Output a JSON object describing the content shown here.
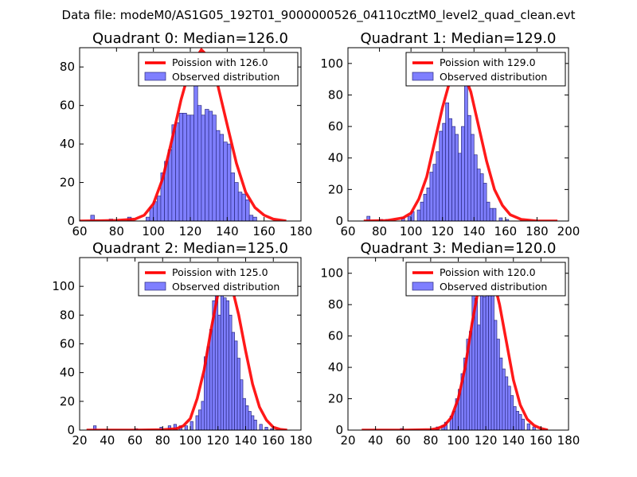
{
  "figure_title": "Data file: modeM0/AS1G05_192T01_9000000526_04110cztM0_level2_quad_clean.evt",
  "colors": {
    "bar_fill": "#7f7fff",
    "bar_edge": "#2a2a80",
    "poisson_line": "#ff0000"
  },
  "chart_data": [
    {
      "type": "bar",
      "title": "Quadrant 0: Median=126.0",
      "median": 126.0,
      "xlim": [
        60,
        180
      ],
      "ylim": [
        0,
        90
      ],
      "xticks": [
        60,
        80,
        100,
        120,
        140,
        160,
        180
      ],
      "yticks": [
        0,
        20,
        40,
        60,
        80
      ],
      "legend": {
        "position": "top-right",
        "line_label": "Poission with 126.0",
        "bar_label": "Observed distribution"
      },
      "bins": [
        [
          66,
          3
        ],
        [
          76,
          1
        ],
        [
          86,
          2
        ],
        [
          96,
          2
        ],
        [
          98,
          7
        ],
        [
          100,
          10
        ],
        [
          102,
          13
        ],
        [
          104,
          25
        ],
        [
          106,
          31
        ],
        [
          108,
          37
        ],
        [
          110,
          50
        ],
        [
          112,
          51
        ],
        [
          114,
          56
        ],
        [
          116,
          56
        ],
        [
          118,
          55
        ],
        [
          120,
          55
        ],
        [
          122,
          75
        ],
        [
          124,
          60
        ],
        [
          126,
          55
        ],
        [
          128,
          58
        ],
        [
          130,
          57
        ],
        [
          132,
          55
        ],
        [
          134,
          47
        ],
        [
          136,
          45
        ],
        [
          138,
          41
        ],
        [
          140,
          40
        ],
        [
          142,
          25
        ],
        [
          144,
          20
        ],
        [
          146,
          15
        ],
        [
          148,
          14
        ],
        [
          150,
          11
        ],
        [
          152,
          3
        ],
        [
          154,
          2
        ]
      ],
      "poisson_curve": [
        [
          60,
          0
        ],
        [
          80,
          0.3
        ],
        [
          90,
          1
        ],
        [
          95,
          3
        ],
        [
          100,
          9
        ],
        [
          105,
          22
        ],
        [
          110,
          42
        ],
        [
          115,
          63
        ],
        [
          120,
          80
        ],
        [
          126,
          89
        ],
        [
          130,
          85
        ],
        [
          135,
          70
        ],
        [
          140,
          50
        ],
        [
          145,
          30
        ],
        [
          150,
          15
        ],
        [
          155,
          7
        ],
        [
          160,
          3
        ],
        [
          165,
          1
        ],
        [
          172,
          0
        ]
      ]
    },
    {
      "type": "bar",
      "title": "Quadrant 1: Median=129.0",
      "median": 129.0,
      "xlim": [
        60,
        200
      ],
      "ylim": [
        0,
        110
      ],
      "xticks": [
        60,
        80,
        100,
        120,
        140,
        160,
        180,
        200
      ],
      "yticks": [
        0,
        20,
        40,
        60,
        80,
        100
      ],
      "legend": {
        "position": "top-right",
        "line_label": "Poission with 129.0",
        "bar_label": "Observed distribution"
      },
      "bins": [
        [
          72,
          3
        ],
        [
          80,
          1
        ],
        [
          84,
          1
        ],
        [
          94,
          2
        ],
        [
          98,
          3
        ],
        [
          100,
          6
        ],
        [
          104,
          7
        ],
        [
          106,
          12
        ],
        [
          108,
          17
        ],
        [
          110,
          21
        ],
        [
          112,
          31
        ],
        [
          114,
          36
        ],
        [
          116,
          44
        ],
        [
          118,
          57
        ],
        [
          120,
          62
        ],
        [
          122,
          75
        ],
        [
          124,
          65
        ],
        [
          126,
          60
        ],
        [
          128,
          55
        ],
        [
          130,
          43
        ],
        [
          132,
          60
        ],
        [
          134,
          98
        ],
        [
          136,
          67
        ],
        [
          138,
          55
        ],
        [
          140,
          42
        ],
        [
          142,
          33
        ],
        [
          144,
          30
        ],
        [
          146,
          24
        ],
        [
          148,
          12
        ],
        [
          150,
          8
        ],
        [
          152,
          8
        ],
        [
          156,
          2
        ],
        [
          160,
          1
        ]
      ],
      "poisson_curve": [
        [
          70,
          0
        ],
        [
          85,
          0.3
        ],
        [
          95,
          2
        ],
        [
          100,
          5
        ],
        [
          105,
          14
        ],
        [
          110,
          28
        ],
        [
          115,
          50
        ],
        [
          120,
          72
        ],
        [
          125,
          90
        ],
        [
          129,
          98
        ],
        [
          133,
          95
        ],
        [
          138,
          82
        ],
        [
          143,
          60
        ],
        [
          148,
          38
        ],
        [
          153,
          20
        ],
        [
          158,
          10
        ],
        [
          163,
          4
        ],
        [
          170,
          1
        ],
        [
          180,
          0
        ],
        [
          193,
          0
        ]
      ]
    },
    {
      "type": "bar",
      "title": "Quadrant 2: Median=125.0",
      "median": 125.0,
      "xlim": [
        20,
        180
      ],
      "ylim": [
        0,
        120
      ],
      "xticks": [
        20,
        40,
        60,
        80,
        100,
        120,
        140,
        160,
        180
      ],
      "yticks": [
        0,
        20,
        40,
        60,
        80,
        100
      ],
      "legend": {
        "position": "top-right",
        "line_label": "Poission with 125.0",
        "bar_label": "Observed distribution"
      },
      "bins": [
        [
          30,
          3
        ],
        [
          60,
          1
        ],
        [
          78,
          2
        ],
        [
          84,
          3
        ],
        [
          88,
          4
        ],
        [
          92,
          3
        ],
        [
          96,
          3
        ],
        [
          100,
          6
        ],
        [
          104,
          10
        ],
        [
          106,
          14
        ],
        [
          108,
          20
        ],
        [
          110,
          51
        ],
        [
          112,
          58
        ],
        [
          114,
          70
        ],
        [
          116,
          90
        ],
        [
          118,
          102
        ],
        [
          120,
          80
        ],
        [
          122,
          102
        ],
        [
          124,
          92
        ],
        [
          126,
          90
        ],
        [
          128,
          80
        ],
        [
          130,
          68
        ],
        [
          132,
          62
        ],
        [
          134,
          50
        ],
        [
          136,
          35
        ],
        [
          138,
          22
        ],
        [
          140,
          17
        ],
        [
          142,
          13
        ],
        [
          144,
          10
        ],
        [
          146,
          7
        ],
        [
          150,
          4
        ],
        [
          154,
          2
        ],
        [
          158,
          1
        ]
      ],
      "poisson_curve": [
        [
          25,
          0
        ],
        [
          60,
          0
        ],
        [
          80,
          0.3
        ],
        [
          90,
          1
        ],
        [
          95,
          3
        ],
        [
          100,
          8
        ],
        [
          105,
          22
        ],
        [
          110,
          42
        ],
        [
          115,
          70
        ],
        [
          120,
          95
        ],
        [
          125,
          108
        ],
        [
          130,
          100
        ],
        [
          135,
          80
        ],
        [
          140,
          55
        ],
        [
          145,
          32
        ],
        [
          150,
          16
        ],
        [
          155,
          7
        ],
        [
          160,
          2
        ],
        [
          165,
          0.5
        ],
        [
          170,
          0
        ]
      ]
    },
    {
      "type": "bar",
      "title": "Quadrant 3: Median=120.0",
      "median": 120.0,
      "xlim": [
        20,
        180
      ],
      "ylim": [
        0,
        110
      ],
      "xticks": [
        20,
        40,
        60,
        80,
        100,
        120,
        140,
        160,
        180
      ],
      "yticks": [
        0,
        20,
        40,
        60,
        80,
        100
      ],
      "legend": {
        "position": "top-right",
        "line_label": "Poission with 120.0",
        "bar_label": "Observed distribution"
      },
      "bins": [
        [
          58,
          1
        ],
        [
          84,
          2
        ],
        [
          88,
          3
        ],
        [
          90,
          5
        ],
        [
          94,
          9
        ],
        [
          96,
          12
        ],
        [
          98,
          20
        ],
        [
          100,
          26
        ],
        [
          102,
          36
        ],
        [
          104,
          46
        ],
        [
          106,
          58
        ],
        [
          108,
          63
        ],
        [
          110,
          95
        ],
        [
          112,
          84
        ],
        [
          114,
          67
        ],
        [
          116,
          100
        ],
        [
          118,
          85
        ],
        [
          120,
          98
        ],
        [
          122,
          105
        ],
        [
          124,
          90
        ],
        [
          126,
          70
        ],
        [
          128,
          58
        ],
        [
          130,
          46
        ],
        [
          132,
          39
        ],
        [
          134,
          34
        ],
        [
          136,
          28
        ],
        [
          138,
          22
        ],
        [
          140,
          15
        ],
        [
          142,
          12
        ],
        [
          144,
          10
        ],
        [
          146,
          7
        ],
        [
          150,
          4
        ],
        [
          154,
          2
        ]
      ],
      "poisson_curve": [
        [
          30,
          0
        ],
        [
          60,
          0
        ],
        [
          80,
          0.3
        ],
        [
          85,
          1
        ],
        [
          90,
          3
        ],
        [
          95,
          8
        ],
        [
          100,
          20
        ],
        [
          105,
          40
        ],
        [
          110,
          68
        ],
        [
          115,
          92
        ],
        [
          120,
          105
        ],
        [
          125,
          98
        ],
        [
          130,
          80
        ],
        [
          135,
          56
        ],
        [
          140,
          32
        ],
        [
          145,
          16
        ],
        [
          150,
          7
        ],
        [
          155,
          3
        ],
        [
          160,
          1
        ],
        [
          165,
          0
        ]
      ]
    }
  ]
}
